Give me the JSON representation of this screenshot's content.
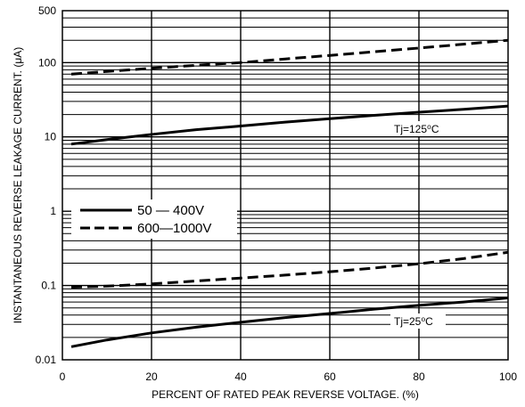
{
  "chart_data": {
    "type": "line",
    "title": "",
    "xlabel": "PERCENT OF RATED PEAK REVERSE VOLTAGE. (%)",
    "ylabel": "INSTANTANEOUS REVERSE LEAKAGE CURRENT. (μA)",
    "xlim": [
      0,
      100
    ],
    "ylim": [
      0.01,
      500
    ],
    "yscale": "log",
    "grid": true,
    "x_ticks": [
      "0",
      "20",
      "40",
      "60",
      "80",
      "100"
    ],
    "y_ticks": [
      "0.01",
      "0.1",
      "1",
      "10",
      "100",
      "500"
    ],
    "legend": {
      "placement": "left-middle",
      "entries": [
        {
          "label": "50 — 400V",
          "style": "solid"
        },
        {
          "label": "600—1000V",
          "style": "dashed"
        }
      ]
    },
    "annotations": [
      {
        "text": "Tj=125⁰C"
      },
      {
        "text": "Tj=25⁰C"
      }
    ],
    "series": [
      {
        "style": "solid",
        "condition": "Tj=125⁰C",
        "x": [
          2,
          10,
          20,
          30,
          40,
          50,
          60,
          70,
          80,
          90,
          100
        ],
        "y": [
          8,
          9.2,
          10.8,
          12.5,
          14,
          15.8,
          17.6,
          19.5,
          21.5,
          23.5,
          26
        ]
      },
      {
        "style": "dashed",
        "condition": "Tj=125⁰C",
        "x": [
          2,
          10,
          20,
          30,
          40,
          50,
          60,
          70,
          80,
          90,
          100
        ],
        "y": [
          70,
          76,
          84,
          92,
          100,
          112,
          125,
          140,
          157,
          177,
          200
        ]
      },
      {
        "style": "solid",
        "condition": "Tj=25⁰C",
        "x": [
          2,
          10,
          20,
          30,
          40,
          50,
          60,
          70,
          80,
          90,
          100
        ],
        "y": [
          0.015,
          0.0185,
          0.023,
          0.0275,
          0.032,
          0.037,
          0.042,
          0.048,
          0.054,
          0.06,
          0.068
        ]
      },
      {
        "style": "dashed",
        "condition": "Tj=25⁰C",
        "x": [
          2,
          10,
          20,
          30,
          40,
          50,
          60,
          70,
          80,
          90,
          100
        ],
        "y": [
          0.095,
          0.098,
          0.105,
          0.115,
          0.126,
          0.138,
          0.153,
          0.172,
          0.196,
          0.23,
          0.28
        ]
      }
    ]
  }
}
